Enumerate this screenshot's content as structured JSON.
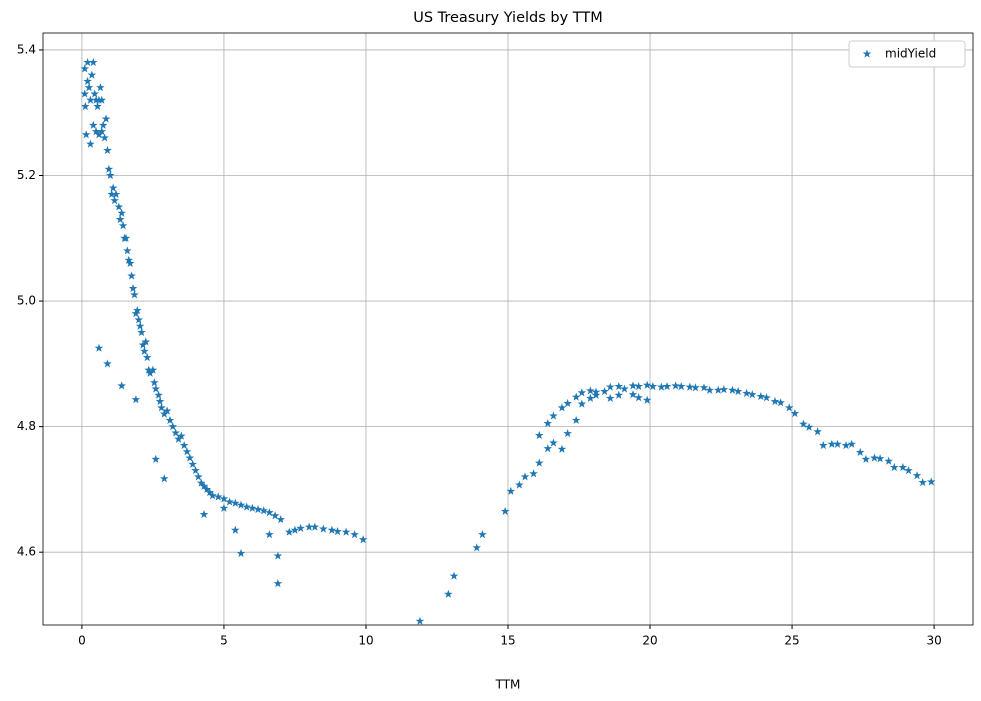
{
  "chart_data": {
    "type": "scatter",
    "title": "US Treasury Yields by TTM",
    "x_label": "TTM",
    "xlim": [
      -1.37,
      31.37
    ],
    "ylim": [
      4.484,
      5.427
    ],
    "xticks": [
      0,
      5,
      10,
      15,
      20,
      25,
      30
    ],
    "yticks": [
      4.6,
      4.8,
      {
        "value": 5,
        "label": "5.0"
      },
      5.2,
      5.4
    ],
    "grid": true,
    "legend": "upper right",
    "marker": "star",
    "series": [
      {
        "name": "midYield",
        "color": "#1f77b4",
        "x": [
          0.1,
          0.1,
          0.12,
          0.15,
          0.2,
          0.2,
          0.25,
          0.3,
          0.3,
          0.35,
          0.4,
          0.4,
          0.45,
          0.5,
          0.5,
          0.55,
          0.6,
          0.6,
          0.65,
          0.7,
          0.7,
          0.75,
          0.8,
          0.85,
          0.9,
          0.95,
          1.0,
          1.05,
          1.1,
          1.15,
          1.2,
          1.3,
          1.35,
          1.4,
          1.45,
          1.5,
          1.55,
          1.6,
          1.65,
          1.7,
          1.75,
          1.8,
          1.85,
          1.9,
          1.95,
          2.0,
          2.05,
          2.1,
          2.15,
          2.2,
          2.25,
          2.3,
          2.35,
          2.4,
          2.5,
          2.55,
          2.6,
          2.7,
          2.75,
          2.8,
          2.9,
          3.0,
          3.1,
          3.2,
          3.3,
          3.4,
          3.5,
          3.6,
          3.7,
          3.8,
          3.9,
          4.0,
          4.1,
          4.2,
          4.3,
          4.4,
          4.5,
          4.6,
          4.8,
          5.0,
          5.2,
          5.4,
          5.6,
          5.8,
          6.0,
          6.2,
          6.4,
          6.6,
          6.8,
          7.0,
          7.3,
          7.5,
          7.7,
          8.0,
          8.2,
          8.5,
          8.8,
          9.0,
          9.3,
          9.6,
          9.9,
          0.6,
          0.9,
          1.4,
          1.9,
          2.6,
          2.9,
          4.3,
          5.4,
          5.6,
          6.6,
          6.9,
          6.9,
          5.0,
          11.9,
          12.9,
          13.1,
          13.9,
          14.1,
          14.9,
          15.1,
          15.4,
          15.6,
          15.9,
          16.1,
          16.1,
          16.4,
          16.4,
          16.6,
          16.6,
          16.9,
          16.9,
          17.1,
          17.1,
          17.4,
          17.4,
          17.6,
          17.6,
          17.9,
          17.9,
          18.1,
          18.1,
          18.4,
          18.6,
          18.6,
          18.9,
          18.9,
          19.1,
          19.4,
          19.4,
          19.6,
          19.6,
          19.9,
          19.9,
          20.1,
          20.4,
          20.6,
          20.9,
          21.1,
          21.4,
          21.6,
          21.9,
          22.1,
          22.4,
          22.6,
          22.9,
          23.1,
          23.4,
          23.6,
          23.9,
          24.1,
          24.4,
          24.6,
          24.9,
          25.1,
          25.4,
          25.6,
          25.9,
          26.1,
          26.4,
          26.6,
          26.9,
          27.1,
          27.4,
          27.6,
          27.9,
          28.1,
          28.4,
          28.6,
          28.9,
          29.1,
          29.4,
          29.6,
          29.9
        ],
        "values": [
          5.37,
          5.33,
          5.31,
          5.265,
          5.35,
          5.38,
          5.34,
          5.25,
          5.32,
          5.36,
          5.38,
          5.28,
          5.33,
          5.32,
          5.27,
          5.31,
          5.32,
          5.265,
          5.34,
          5.32,
          5.27,
          5.28,
          5.26,
          5.29,
          5.24,
          5.21,
          5.2,
          5.17,
          5.18,
          5.16,
          5.17,
          5.15,
          5.13,
          5.14,
          5.12,
          5.1,
          5.1,
          5.08,
          5.065,
          5.06,
          5.04,
          5.02,
          5.01,
          4.98,
          4.985,
          4.97,
          4.96,
          4.95,
          4.93,
          4.92,
          4.935,
          4.91,
          4.89,
          4.885,
          4.89,
          4.87,
          4.86,
          4.85,
          4.84,
          4.83,
          4.82,
          4.825,
          4.81,
          4.8,
          4.79,
          4.78,
          4.785,
          4.77,
          4.76,
          4.75,
          4.74,
          4.73,
          4.72,
          4.71,
          4.705,
          4.7,
          4.695,
          4.69,
          4.688,
          4.685,
          4.68,
          4.678,
          4.675,
          4.672,
          4.67,
          4.668,
          4.666,
          4.663,
          4.658,
          4.652,
          4.632,
          4.635,
          4.638,
          4.64,
          4.64,
          4.637,
          4.635,
          4.633,
          4.632,
          4.628,
          4.62,
          4.925,
          4.9,
          4.865,
          4.843,
          4.748,
          4.717,
          4.66,
          4.635,
          4.598,
          4.628,
          4.594,
          4.55,
          4.67,
          4.49,
          4.533,
          4.562,
          4.607,
          4.628,
          4.665,
          4.697,
          4.707,
          4.72,
          4.725,
          4.742,
          4.786,
          4.765,
          4.805,
          4.817,
          4.774,
          4.764,
          4.83,
          4.789,
          4.837,
          4.81,
          4.847,
          4.836,
          4.854,
          4.845,
          4.857,
          4.85,
          4.855,
          4.856,
          4.845,
          4.863,
          4.85,
          4.864,
          4.86,
          4.851,
          4.865,
          4.846,
          4.864,
          4.842,
          4.866,
          4.864,
          4.863,
          4.864,
          4.865,
          4.864,
          4.863,
          4.862,
          4.862,
          4.858,
          4.858,
          4.859,
          4.858,
          4.856,
          4.853,
          4.851,
          4.848,
          4.846,
          4.84,
          4.838,
          4.83,
          4.821,
          4.804,
          4.799,
          4.792,
          4.77,
          4.772,
          4.772,
          4.77,
          4.772,
          4.759,
          4.748,
          4.75,
          4.749,
          4.745,
          4.735,
          4.735,
          4.73,
          4.722,
          4.711,
          4.712
        ]
      }
    ]
  }
}
